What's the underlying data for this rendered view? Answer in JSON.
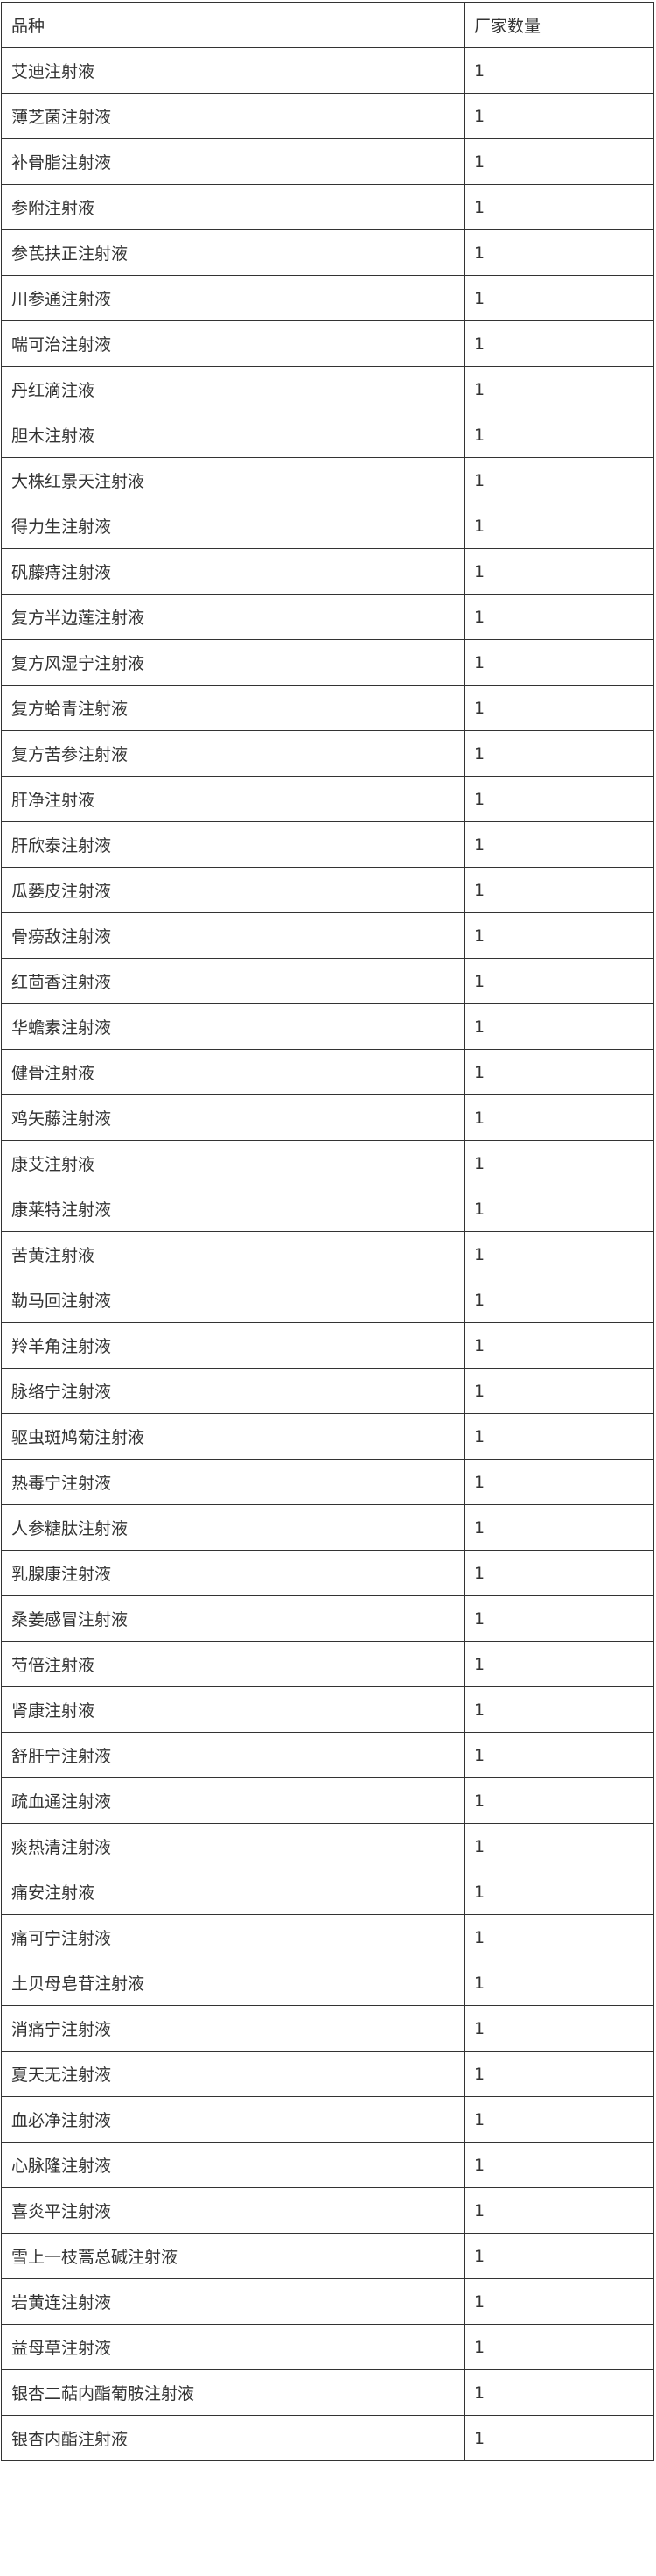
{
  "table": {
    "headers": [
      "品种",
      "厂家数量"
    ],
    "rows": [
      [
        "艾迪注射液",
        "1"
      ],
      [
        "薄芝菌注射液",
        "1"
      ],
      [
        "补骨脂注射液",
        "1"
      ],
      [
        "参附注射液",
        "1"
      ],
      [
        "参芪扶正注射液",
        "1"
      ],
      [
        "川参通注射液",
        "1"
      ],
      [
        "喘可治注射液",
        "1"
      ],
      [
        "丹红滴注液",
        "1"
      ],
      [
        "胆木注射液",
        "1"
      ],
      [
        "大株红景天注射液",
        "1"
      ],
      [
        "得力生注射液",
        "1"
      ],
      [
        "矾藤痔注射液",
        "1"
      ],
      [
        "复方半边莲注射液",
        "1"
      ],
      [
        "复方风湿宁注射液",
        "1"
      ],
      [
        "复方蛤青注射液",
        "1"
      ],
      [
        "复方苦参注射液",
        "1"
      ],
      [
        "肝净注射液",
        "1"
      ],
      [
        "肝欣泰注射液",
        "1"
      ],
      [
        "瓜蒌皮注射液",
        "1"
      ],
      [
        "骨痨敌注射液",
        "1"
      ],
      [
        "红茴香注射液",
        "1"
      ],
      [
        "华蟾素注射液",
        "1"
      ],
      [
        "健骨注射液",
        "1"
      ],
      [
        "鸡矢藤注射液",
        "1"
      ],
      [
        "康艾注射液",
        "1"
      ],
      [
        "康莱特注射液",
        "1"
      ],
      [
        "苦黄注射液",
        "1"
      ],
      [
        "勒马回注射液",
        "1"
      ],
      [
        "羚羊角注射液",
        "1"
      ],
      [
        "脉络宁注射液",
        "1"
      ],
      [
        "驱虫斑鸠菊注射液",
        "1"
      ],
      [
        "热毒宁注射液",
        "1"
      ],
      [
        "人参糖肽注射液",
        "1"
      ],
      [
        "乳腺康注射液",
        "1"
      ],
      [
        "桑姜感冒注射液",
        "1"
      ],
      [
        "芍倍注射液",
        "1"
      ],
      [
        "肾康注射液",
        "1"
      ],
      [
        "舒肝宁注射液",
        "1"
      ],
      [
        "疏血通注射液",
        "1"
      ],
      [
        "痰热清注射液",
        "1"
      ],
      [
        "痛安注射液",
        "1"
      ],
      [
        "痛可宁注射液",
        "1"
      ],
      [
        "土贝母皂苷注射液",
        "1"
      ],
      [
        "消痛宁注射液",
        "1"
      ],
      [
        "夏天无注射液",
        "1"
      ],
      [
        "血必净注射液",
        "1"
      ],
      [
        "心脉隆注射液",
        "1"
      ],
      [
        "喜炎平注射液",
        "1"
      ],
      [
        "雪上一枝蒿总碱注射液",
        "1"
      ],
      [
        "岩黄连注射液",
        "1"
      ],
      [
        "益母草注射液",
        "1"
      ],
      [
        "银杏二萜内酯葡胺注射液",
        "1"
      ],
      [
        "银杏内酯注射液",
        "1"
      ]
    ]
  }
}
